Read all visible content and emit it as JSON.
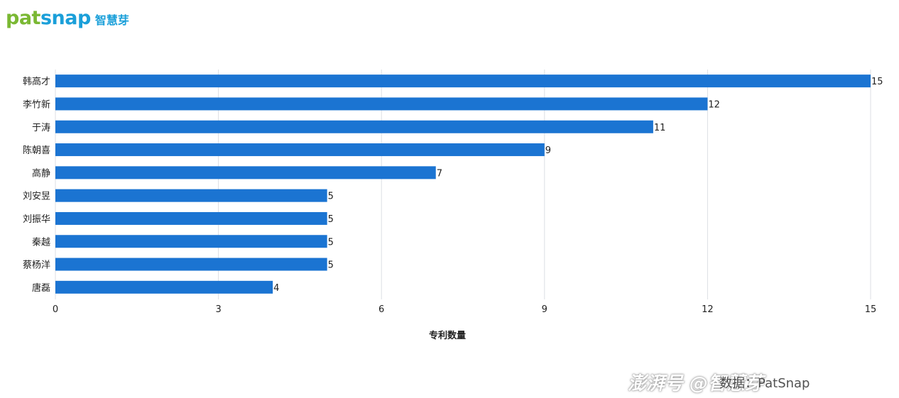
{
  "logo": {
    "brand_a": "pat",
    "brand_b": "snap",
    "brand_cn": "智慧芽"
  },
  "watermark": {
    "text": "澎湃号 @智慧芽",
    "sub": "数据：PatSnap"
  },
  "colors": {
    "bar": "#1b74d2",
    "grid": "#dcdfe3",
    "text": "#222222"
  },
  "chart_data": {
    "type": "bar",
    "orientation": "horizontal",
    "categories": [
      "韩高才",
      "李竹新",
      "于涛",
      "陈朝喜",
      "高静",
      "刘安昱",
      "刘振华",
      "秦越",
      "蔡杨洋",
      "唐磊"
    ],
    "values": [
      15,
      12,
      11,
      9,
      7,
      5,
      5,
      5,
      5,
      4
    ],
    "xlabel": "专利数量",
    "ylabel": "",
    "xlim": [
      0,
      15
    ],
    "xticks": [
      0,
      3,
      6,
      9,
      12,
      15
    ],
    "grid": true,
    "data_labels": true
  }
}
